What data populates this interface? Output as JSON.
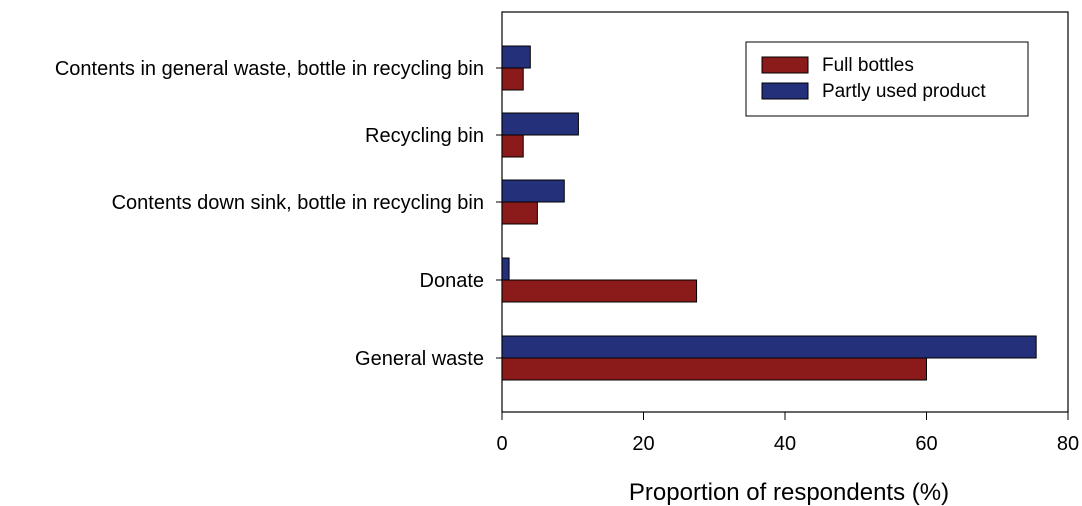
{
  "chart_data": {
    "type": "bar",
    "orientation": "horizontal",
    "categories": [
      "Contents in general waste, bottle in recycling bin",
      "Recycling bin",
      "Contents down sink, bottle in recycling bin",
      "Donate",
      "General waste"
    ],
    "series": [
      {
        "name": "Full bottles",
        "color": "#8b1a1a",
        "values": [
          3,
          3,
          5,
          27.5,
          60
        ]
      },
      {
        "name": "Partly used product",
        "color": "#24307a",
        "values": [
          4,
          10.8,
          8.8,
          1,
          75.5
        ]
      }
    ],
    "xlabel": "Proportion of respondents (%)",
    "ylabel": "",
    "xlim": [
      0,
      80
    ],
    "xticks": [
      "0",
      "20",
      "40",
      "60",
      "80"
    ],
    "grid": false,
    "legend_position": "top-right"
  }
}
